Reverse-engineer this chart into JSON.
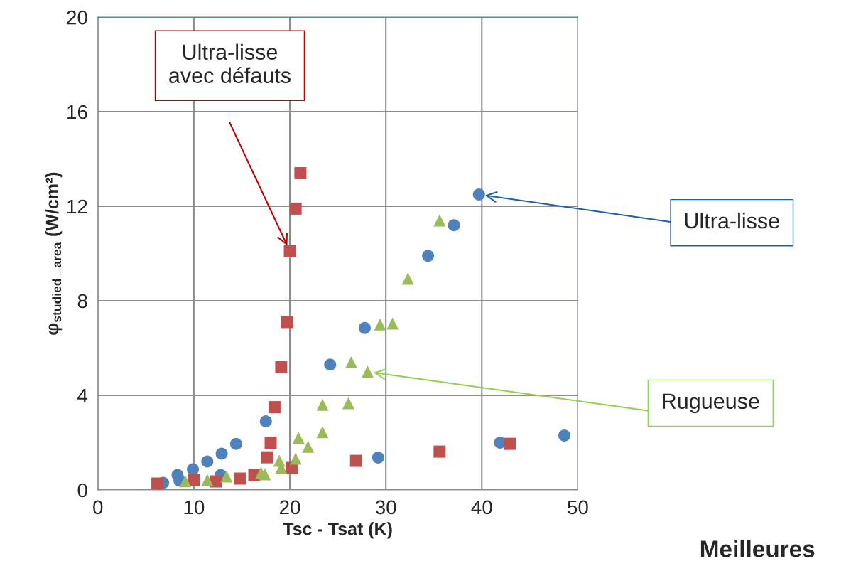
{
  "chart_data": {
    "type": "scatter",
    "xlabel": "Tsc - Tsat (K)",
    "ylabel": "φ$_{studied}$_$_{area}$ (W/cm²)",
    "xlim": [
      0,
      50
    ],
    "xticks": [
      0,
      10,
      20,
      30,
      40,
      50
    ],
    "ylim": [
      0,
      20
    ],
    "yticks": [
      0,
      4,
      8,
      12,
      16,
      20
    ],
    "grid": true,
    "legend": false,
    "series": [
      {
        "color": "#4f81bd",
        "marker": "circle",
        "x": [
          6.8,
          8.3,
          8.5,
          9.9,
          11.4,
          12.9,
          12.8,
          14.4,
          17.5,
          24.2,
          27.8,
          34.4,
          37.1,
          39.7,
          41.9,
          48.6,
          29.2
        ],
        "values": [
          0.3,
          0.63,
          0.4,
          0.87,
          1.2,
          1.53,
          0.63,
          1.95,
          2.9,
          5.3,
          6.85,
          9.9,
          11.2,
          12.5,
          2.0,
          2.3,
          1.37
        ]
      },
      {
        "color": "#c0504d",
        "marker": "square",
        "x": [
          6.2,
          10.0,
          12.3,
          14.8,
          16.3,
          17.6,
          18.0,
          18.4,
          20.2,
          19.1,
          19.7,
          20.0,
          20.6,
          21.1,
          26.9,
          35.6,
          42.9
        ],
        "values": [
          0.27,
          0.42,
          0.36,
          0.48,
          0.63,
          1.38,
          2.0,
          3.5,
          0.93,
          5.2,
          7.1,
          10.1,
          11.9,
          13.4,
          1.23,
          1.62,
          1.95
        ]
      },
      {
        "color": "#9bbb59",
        "marker": "triangle",
        "x": [
          9.1,
          11.4,
          13.4,
          17.0,
          17.4,
          18.9,
          19.1,
          20.6,
          20.9,
          21.9,
          23.4,
          23.4,
          26.1,
          26.4,
          28.1,
          29.4,
          30.7,
          32.3,
          35.6
        ],
        "values": [
          0.37,
          0.42,
          0.57,
          0.72,
          0.66,
          1.23,
          0.93,
          1.32,
          2.2,
          1.83,
          2.44,
          3.6,
          3.67,
          5.4,
          5.0,
          7.0,
          7.04,
          8.93,
          11.4
        ]
      }
    ],
    "annotations": [
      "Ultra-lisse\navec défauts",
      "Ultra-lisse",
      "Rugueuse",
      "Meilleures"
    ]
  }
}
